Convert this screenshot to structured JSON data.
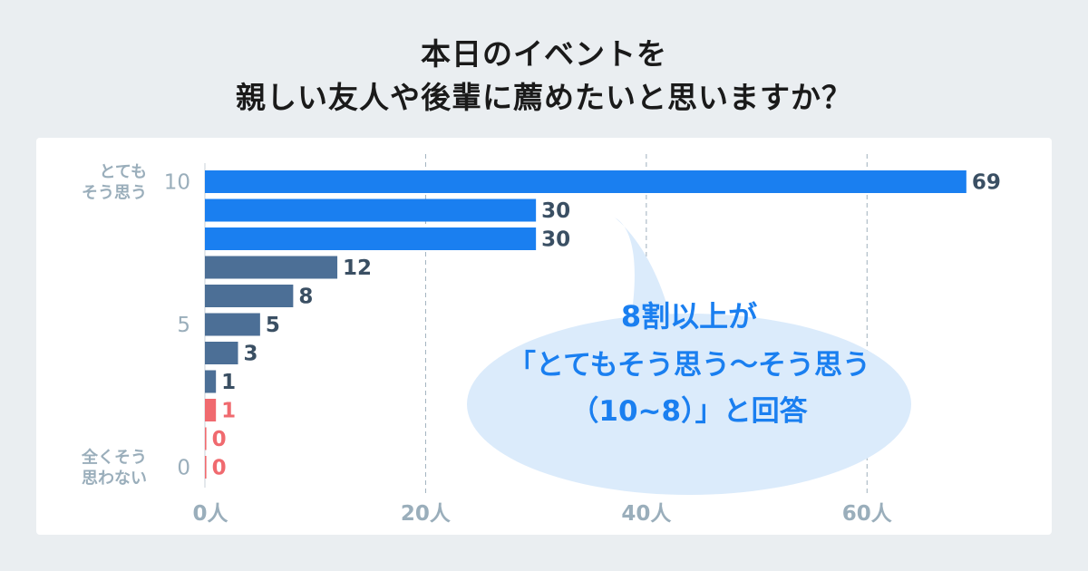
{
  "title_lines": [
    "本日のイベントを",
    "親しい友人や後輩に薦めたいと思いますか？"
  ],
  "chart_data": {
    "type": "bar",
    "orientation": "horizontal",
    "categories": [
      "10",
      "9",
      "8",
      "7",
      "6",
      "5",
      "4",
      "3",
      "2",
      "1",
      "0"
    ],
    "values": [
      69,
      30,
      30,
      12,
      8,
      5,
      3,
      1,
      1,
      0,
      0
    ],
    "bar_colors": [
      "#1a7ff0",
      "#1a7ff0",
      "#1a7ff0",
      "#4c6f96",
      "#4c6f96",
      "#4c6f96",
      "#4c6f96",
      "#4c6f96",
      "#f06a6f",
      "#f06a6f",
      "#f06a6f"
    ],
    "label_colors": [
      "#3a4f63",
      "#3a4f63",
      "#3a4f63",
      "#3a4f63",
      "#3a4f63",
      "#3a4f63",
      "#3a4f63",
      "#3a4f63",
      "#f06a6f",
      "#f06a6f",
      "#f06a6f"
    ],
    "y_tick_labels": [
      {
        "row": 0,
        "text": "10"
      },
      {
        "row": 5,
        "text": "5"
      },
      {
        "row": 10,
        "text": "0"
      }
    ],
    "y_end_labels": [
      {
        "row": 0,
        "lines": [
          "とても",
          "そう思う"
        ]
      },
      {
        "row": 10,
        "lines": [
          "全くそう",
          "思わない"
        ]
      }
    ],
    "x_ticks": [
      {
        "value": 0,
        "label": "0人"
      },
      {
        "value": 20,
        "label": "20人"
      },
      {
        "value": 40,
        "label": "40人"
      },
      {
        "value": 60,
        "label": "60人"
      }
    ],
    "xlim": [
      0,
      70
    ],
    "grid": "vertical-dashed",
    "annotation": {
      "lines": [
        "8割以上が",
        "「とてもそう思う～そう思う",
        "（10~8）」と回答"
      ],
      "fill": "#dbebfb",
      "text_color": "#1a7ff0"
    },
    "axis_label_color": "#9aaebb"
  }
}
